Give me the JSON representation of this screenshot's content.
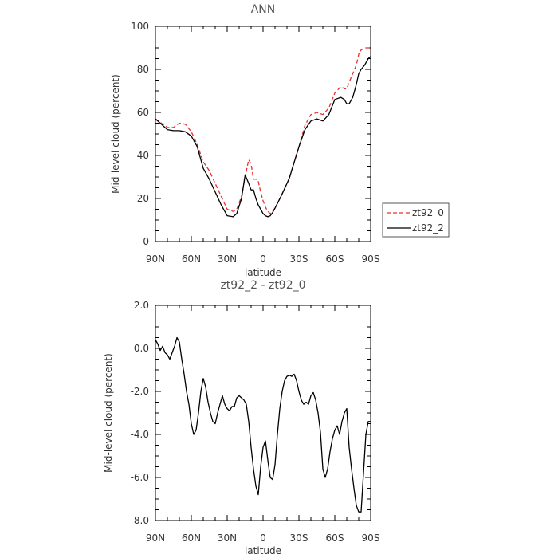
{
  "chart_data": [
    {
      "type": "line",
      "title": "ANN",
      "xlabel": "latitude",
      "ylabel": "Mid-level cloud (percent)",
      "x_tick_labels": [
        "90N",
        "60N",
        "30N",
        "0",
        "30S",
        "60S",
        "90S"
      ],
      "x_tick_values": [
        90,
        60,
        30,
        0,
        -30,
        -60,
        -90
      ],
      "xlim": [
        90,
        -90
      ],
      "ylim": [
        0,
        100
      ],
      "y_ticks": [
        0,
        20,
        40,
        60,
        80,
        100
      ],
      "y_tick_labels": [
        "0",
        "20",
        "40",
        "60",
        "80",
        "100"
      ],
      "grid": false,
      "legend_position": "right",
      "series": [
        {
          "name": "zt92_0",
          "color": "#e8302e",
          "dash": "dashed",
          "x": [
            90,
            85,
            80,
            75,
            70,
            65,
            60,
            55,
            50,
            45,
            40,
            35,
            30,
            25,
            22,
            18,
            15,
            12,
            10,
            8,
            6,
            4,
            2,
            0,
            -2,
            -4,
            -6,
            -8,
            -10,
            -15,
            -20,
            -22,
            -25,
            -30,
            -35,
            -40,
            -45,
            -50,
            -55,
            -60,
            -65,
            -68,
            -70,
            -72,
            -75,
            -78,
            -80,
            -82,
            -85,
            -88,
            -90
          ],
          "y": [
            57,
            55,
            53,
            53,
            55,
            54.5,
            51,
            45,
            37,
            33,
            27,
            21,
            15,
            14,
            15,
            21,
            30,
            38,
            36,
            29,
            29,
            28,
            23,
            19,
            16,
            14,
            13,
            14,
            15.5,
            21,
            27,
            29.5,
            35,
            44,
            54,
            59,
            60,
            59,
            62,
            69,
            72,
            71,
            71,
            74,
            78,
            82,
            87,
            89,
            90,
            90,
            90
          ]
        },
        {
          "name": "zt92_2",
          "color": "#000000",
          "dash": "solid",
          "x": [
            90,
            85,
            80,
            75,
            70,
            65,
            60,
            55,
            50,
            45,
            40,
            35,
            30,
            25,
            22,
            18,
            15,
            12,
            10,
            8,
            6,
            4,
            2,
            0,
            -2,
            -4,
            -6,
            -8,
            -10,
            -15,
            -20,
            -22,
            -25,
            -30,
            -35,
            -40,
            -45,
            -50,
            -55,
            -60,
            -65,
            -68,
            -70,
            -72,
            -75,
            -78,
            -80,
            -82,
            -85,
            -88,
            -90
          ],
          "y": [
            57,
            54.5,
            52,
            51.5,
            51.5,
            51,
            49,
            44,
            34,
            29,
            23,
            17,
            12,
            11.5,
            13,
            20,
            31,
            27,
            24,
            24,
            20,
            17,
            15,
            13,
            12,
            11.5,
            12,
            13.5,
            15.5,
            21,
            27,
            29.5,
            35,
            44,
            52,
            56,
            57,
            56,
            59,
            66,
            67,
            66,
            64,
            64,
            67,
            73,
            78,
            80,
            82,
            85,
            86
          ]
        }
      ]
    },
    {
      "type": "line",
      "title": "zt92_2 - zt92_0",
      "xlabel": "latitude",
      "ylabel": "Mid-level cloud (percent)",
      "x_tick_labels": [
        "90N",
        "60N",
        "30N",
        "0",
        "30S",
        "60S",
        "90S"
      ],
      "x_tick_values": [
        90,
        60,
        30,
        0,
        -30,
        -60,
        -90
      ],
      "xlim": [
        90,
        -90
      ],
      "ylim": [
        -8,
        2
      ],
      "y_ticks": [
        2,
        0,
        -2,
        -4,
        -6,
        -8
      ],
      "y_tick_labels": [
        "2.0",
        "0.0",
        "-2.0",
        "-4.0",
        "-6.0",
        "-8.0"
      ],
      "grid": false,
      "series": [
        {
          "name": "",
          "color": "#000000",
          "dash": "solid",
          "x": [
            90,
            89,
            88,
            86,
            84,
            82,
            80,
            78,
            76,
            74,
            72,
            70,
            68,
            66,
            64,
            62,
            60,
            58,
            56,
            54,
            52,
            50,
            48,
            46,
            44,
            42,
            40,
            38,
            36,
            34,
            32,
            30,
            28,
            26,
            24,
            22,
            20,
            18,
            16,
            14,
            12,
            10,
            8,
            6,
            4,
            2,
            0,
            -2,
            -4,
            -6,
            -8,
            -10,
            -12,
            -14,
            -16,
            -18,
            -20,
            -22,
            -24,
            -26,
            -28,
            -30,
            -32,
            -34,
            -36,
            -38,
            -40,
            -42,
            -44,
            -46,
            -48,
            -50,
            -52,
            -54,
            -56,
            -58,
            -60,
            -62,
            -64,
            -66,
            -68,
            -70,
            -72,
            -74,
            -76,
            -78,
            -80,
            -82,
            -84,
            -86,
            -88,
            -90
          ],
          "y": [
            0.4,
            0.3,
            0.2,
            -0.1,
            0.1,
            -0.2,
            -0.3,
            -0.5,
            -0.2,
            0.1,
            0.5,
            0.3,
            -0.5,
            -1.2,
            -2.0,
            -2.6,
            -3.5,
            -4.0,
            -3.8,
            -3.0,
            -2.0,
            -1.4,
            -1.8,
            -2.5,
            -3.0,
            -3.4,
            -3.5,
            -3.0,
            -2.6,
            -2.2,
            -2.6,
            -2.8,
            -2.9,
            -2.7,
            -2.7,
            -2.3,
            -2.2,
            -2.3,
            -2.4,
            -2.6,
            -3.4,
            -4.6,
            -5.6,
            -6.4,
            -6.8,
            -5.5,
            -4.6,
            -4.3,
            -5.2,
            -6.0,
            -6.1,
            -5.4,
            -4.0,
            -2.8,
            -2.0,
            -1.5,
            -1.3,
            -1.25,
            -1.3,
            -1.2,
            -1.5,
            -2.0,
            -2.4,
            -2.6,
            -2.5,
            -2.6,
            -2.2,
            -2.05,
            -2.4,
            -3.0,
            -3.9,
            -5.6,
            -6.0,
            -5.6,
            -4.8,
            -4.2,
            -3.8,
            -3.6,
            -4.0,
            -3.4,
            -3.0,
            -2.8,
            -4.6,
            -5.6,
            -6.5,
            -7.3,
            -7.6,
            -7.6,
            -5.8,
            -4.0,
            -3.4,
            -3.4
          ]
        }
      ]
    }
  ],
  "legend": {
    "items": [
      {
        "label": "zt92_0",
        "color": "#e8302e",
        "dash": "dashed"
      },
      {
        "label": "zt92_2",
        "color": "#000000",
        "dash": "solid"
      }
    ]
  }
}
